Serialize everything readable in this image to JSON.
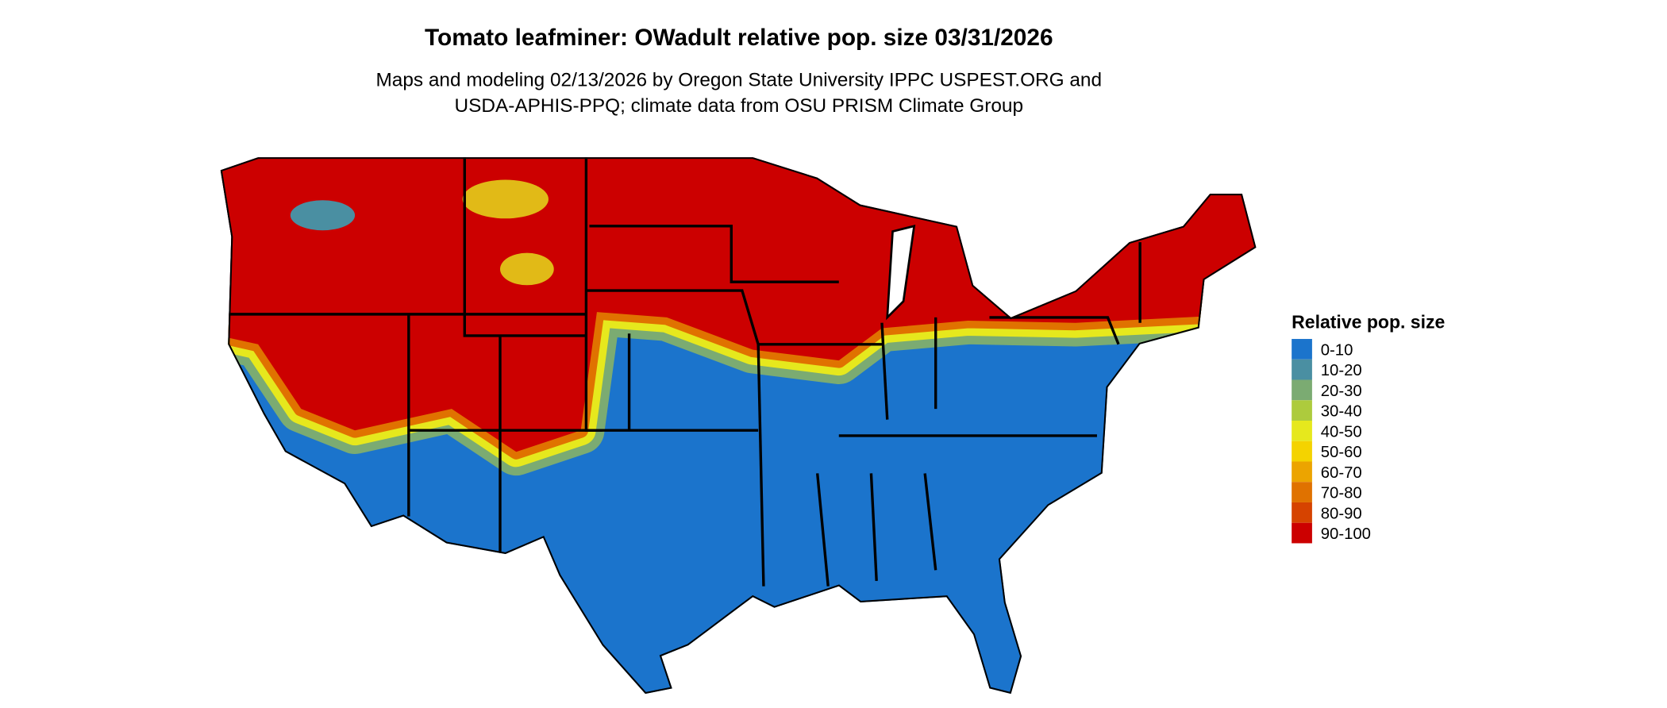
{
  "title": "Tomato leafminer: OWadult relative pop. size 03/31/2026",
  "subtitle": [
    "Maps and modeling 02/13/2026 by Oregon State University IPPC USPEST.ORG and",
    "USDA-APHIS-PPQ; climate data from OSU PRISM Climate Group"
  ],
  "legend": {
    "title": "Relative pop. size",
    "items": [
      {
        "label": "0-10",
        "color": "#1b74cc"
      },
      {
        "label": "10-20",
        "color": "#4a8fa2"
      },
      {
        "label": "20-30",
        "color": "#7bab72"
      },
      {
        "label": "30-40",
        "color": "#adcb3d"
      },
      {
        "label": "40-50",
        "color": "#e6e81d"
      },
      {
        "label": "50-60",
        "color": "#f4d300"
      },
      {
        "label": "60-70",
        "color": "#eca400"
      },
      {
        "label": "70-80",
        "color": "#e07200"
      },
      {
        "label": "80-90",
        "color": "#d64300"
      },
      {
        "label": "90-100",
        "color": "#cc0000"
      }
    ]
  }
}
